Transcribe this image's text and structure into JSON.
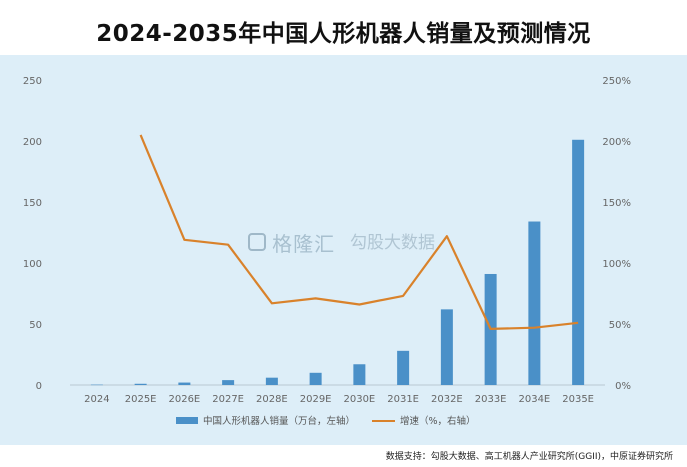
{
  "title": "2024-2035年中国人形机器人销量及预测情况",
  "watermark": {
    "left": "格隆汇",
    "right": "勾股大数据"
  },
  "source": "数据支持：勾股大数据、高工机器人产业研究所(GGII)，中原证券研究所",
  "colors": {
    "bar": "#4a90c8",
    "line": "#d9822b",
    "background": "#ddeef8"
  },
  "chart_data": {
    "type": "bar",
    "categories": [
      "2024",
      "2025E",
      "2026E",
      "2027E",
      "2028E",
      "2029E",
      "2030E",
      "2031E",
      "2032E",
      "2033E",
      "2034E",
      "2035E"
    ],
    "series": [
      {
        "name": "中国人形机器人销量（万台，左轴）",
        "type": "bar",
        "axis": "left",
        "values": [
          0.3,
          1,
          2,
          4,
          6,
          10,
          17,
          28,
          62,
          91,
          134,
          201
        ]
      },
      {
        "name": "增速（%，右轴）",
        "type": "line",
        "axis": "right",
        "values": [
          null,
          205,
          119,
          115,
          67,
          71,
          66,
          73,
          122,
          46,
          47,
          51
        ]
      }
    ],
    "y_left": {
      "ylim": [
        0,
        250
      ],
      "ticks": [
        "0",
        "50",
        "100",
        "150",
        "200",
        "250"
      ]
    },
    "y_right": {
      "ylim": [
        0,
        250
      ],
      "ticks": [
        "0%",
        "50%",
        "100%",
        "150%",
        "200%",
        "250%"
      ]
    },
    "grid": false,
    "legend_position": "bottom"
  }
}
